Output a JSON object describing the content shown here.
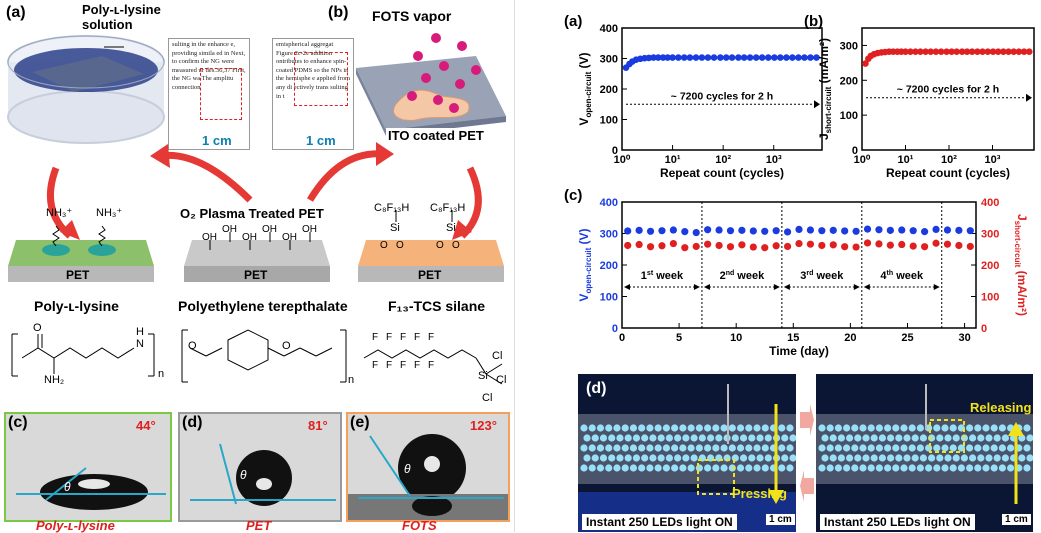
{
  "left": {
    "panel_a": {
      "label": "(a)",
      "solution_label": "Poly-ʟ-lysine\nsolution"
    },
    "panel_b": {
      "label": "(b)",
      "vapor_label": "FOTS vapor",
      "substrate_label": "ITO coated PET"
    },
    "scale_bar": "1 cm",
    "doc_text_1": "sulting in the enhance e, providing simila ed in  Next, to confirm the  NG were measured ur des.36,37 First, the NG wa  The amplitu connection",
    "doc_text_2": "emispherical aggregat Figure 2c-2e addition ontributes to enhance spin-coated PDMS so the NPs in the hemisphe e applied from any di ectively trans sulting in t",
    "center_title": "O₂ Plasma Treated PET",
    "pet_label": "PET",
    "left_group": "NH₃⁺",
    "center_group": "OH",
    "right_group": "C₈F₁₃H",
    "si_label": "Si",
    "o_label": "O",
    "chem_names": [
      "Poly-ʟ-lysine",
      "Polyethylene terepthalate",
      "F₁₃-TCS silane"
    ],
    "struct_labels": {
      "nh": "N",
      "h": "H",
      "n": "n",
      "nh2": "NH₂",
      "o": "O",
      "f": "F",
      "si": "Si",
      "cl": "Cl"
    },
    "contact": [
      {
        "label": "(c)",
        "angle": "44°",
        "caption": "Poly-ʟ-lysine",
        "theta": "θ",
        "border": "#7ac943"
      },
      {
        "label": "(d)",
        "angle": "81°",
        "caption": "PET",
        "theta": "θ",
        "border": "#9a9a9a"
      },
      {
        "label": "(e)",
        "angle": "123°",
        "caption": "FOTS",
        "theta": "θ",
        "border": "#f5a05a"
      }
    ]
  },
  "right": {
    "panel_d": {
      "label": "(d)",
      "left_caption": "Instant 250 LEDs light ON",
      "right_caption": "Instant 250 LEDs light ON",
      "pressing": "Pressing",
      "releasing": "Releasing",
      "scale": "1 cm"
    }
  },
  "chart_data": [
    {
      "label": "(a)",
      "type": "scatter",
      "xlabel": "Repeat count (cycles)",
      "ylabel": "V",
      "ylabel_sub": "open-circuit",
      "ylabel_unit": "(V)",
      "xscale": "log",
      "xlim": [
        1,
        9000
      ],
      "ylim": [
        0,
        400
      ],
      "yticks": [
        0,
        100,
        200,
        300,
        400
      ],
      "xticks": [
        "10⁰",
        "10¹",
        "10²",
        "10³"
      ],
      "annotation": "~ 7200 cycles for 2 h",
      "series": [
        {
          "color": "#1a3be0",
          "x": [
            1.2,
            1.4,
            1.6,
            1.9,
            2.3,
            2.8,
            3.4,
            4.2,
            5.2,
            6.5,
            8,
            10,
            13,
            17,
            22,
            29,
            38,
            50,
            66,
            88,
            115,
            150,
            200,
            260,
            340,
            450,
            590,
            780,
            1030,
            1350,
            1780,
            2340,
            3080,
            4050,
            5330,
            7000
          ],
          "y": [
            270,
            282,
            290,
            296,
            299,
            301,
            302,
            303,
            303,
            303,
            303,
            303,
            303,
            303,
            303,
            303,
            303,
            303,
            303,
            303,
            303,
            303,
            303,
            303,
            303,
            303,
            303,
            303,
            303,
            303,
            303,
            303,
            303,
            303,
            303,
            303
          ]
        }
      ]
    },
    {
      "label": "(b)",
      "type": "scatter",
      "xlabel": "Repeat count (cycles)",
      "ylabel": "J",
      "ylabel_sub": "short-circuit",
      "ylabel_unit": "(mA/m²)",
      "xscale": "log",
      "xlim": [
        1,
        9000
      ],
      "ylim": [
        0,
        350
      ],
      "yticks": [
        0,
        100,
        200,
        300
      ],
      "xticks": [
        "10⁰",
        "10¹",
        "10²",
        "10³"
      ],
      "annotation": "~ 7200 cycles for 2 h",
      "series": [
        {
          "color": "#e02020",
          "x": [
            1.2,
            1.4,
            1.6,
            1.9,
            2.3,
            2.8,
            3.4,
            4.2,
            5.2,
            6.5,
            8,
            10,
            13,
            17,
            22,
            29,
            38,
            50,
            66,
            88,
            115,
            150,
            200,
            260,
            340,
            450,
            590,
            780,
            1030,
            1350,
            1780,
            2340,
            3080,
            4050,
            5330,
            7000
          ],
          "y": [
            248,
            262,
            270,
            275,
            278,
            280,
            281,
            282,
            282,
            282,
            282,
            282,
            282,
            282,
            282,
            282,
            282,
            282,
            282,
            282,
            282,
            282,
            282,
            282,
            282,
            282,
            282,
            282,
            282,
            282,
            282,
            282,
            282,
            282,
            282,
            282
          ]
        }
      ]
    },
    {
      "label": "(c)",
      "type": "scatter",
      "xlabel": "Time (day)",
      "ylabel": "V",
      "ylabel_sub": "open-circuit",
      "ylabel_unit": "(V)",
      "y2label": "J",
      "y2label_sub": "short-circuit",
      "y2label_unit": "(mA/m²)",
      "xlim": [
        0,
        31
      ],
      "ylim": [
        0,
        400
      ],
      "y2lim": [
        0,
        400
      ],
      "xticks": [
        0,
        5,
        10,
        15,
        20,
        25,
        30
      ],
      "yticks": [
        0,
        100,
        200,
        300,
        400
      ],
      "y2ticks": [
        0,
        100,
        200,
        300,
        400
      ],
      "weeks": [
        {
          "num": "1",
          "sup": "st",
          "word": "week"
        },
        {
          "num": "2",
          "sup": "nd",
          "word": "week"
        },
        {
          "num": "3",
          "sup": "rd",
          "word": "week"
        },
        {
          "num": "4",
          "sup": "th",
          "word": "week"
        }
      ],
      "dividers": [
        7,
        14,
        21,
        28
      ],
      "series": [
        {
          "color": "#1a3be0",
          "axis": "left",
          "x": [
            0.5,
            1.5,
            2.5,
            3.5,
            4.5,
            5.5,
            6.5,
            7.5,
            8.5,
            9.5,
            10.5,
            11.5,
            12.5,
            13.5,
            14.5,
            15.5,
            16.5,
            17.5,
            18.5,
            19.5,
            20.5,
            21.5,
            22.5,
            23.5,
            24.5,
            25.5,
            26.5,
            27.5,
            28.5,
            29.5,
            30.5
          ],
          "y": [
            308,
            310,
            307,
            309,
            311,
            306,
            303,
            312,
            311,
            309,
            310,
            308,
            307,
            309,
            305,
            313,
            311,
            309,
            310,
            308,
            307,
            314,
            312,
            310,
            311,
            309,
            306,
            313,
            311,
            310,
            309
          ]
        },
        {
          "color": "#e02020",
          "axis": "right",
          "x": [
            0.5,
            1.5,
            2.5,
            3.5,
            4.5,
            5.5,
            6.5,
            7.5,
            8.5,
            9.5,
            10.5,
            11.5,
            12.5,
            13.5,
            14.5,
            15.5,
            16.5,
            17.5,
            18.5,
            19.5,
            20.5,
            21.5,
            22.5,
            23.5,
            24.5,
            25.5,
            26.5,
            27.5,
            28.5,
            29.5,
            30.5
          ],
          "y": [
            262,
            265,
            258,
            261,
            268,
            255,
            259,
            266,
            262,
            258,
            264,
            257,
            255,
            261,
            259,
            268,
            266,
            262,
            264,
            258,
            257,
            270,
            267,
            263,
            265,
            260,
            258,
            269,
            266,
            262,
            259
          ]
        }
      ]
    }
  ]
}
